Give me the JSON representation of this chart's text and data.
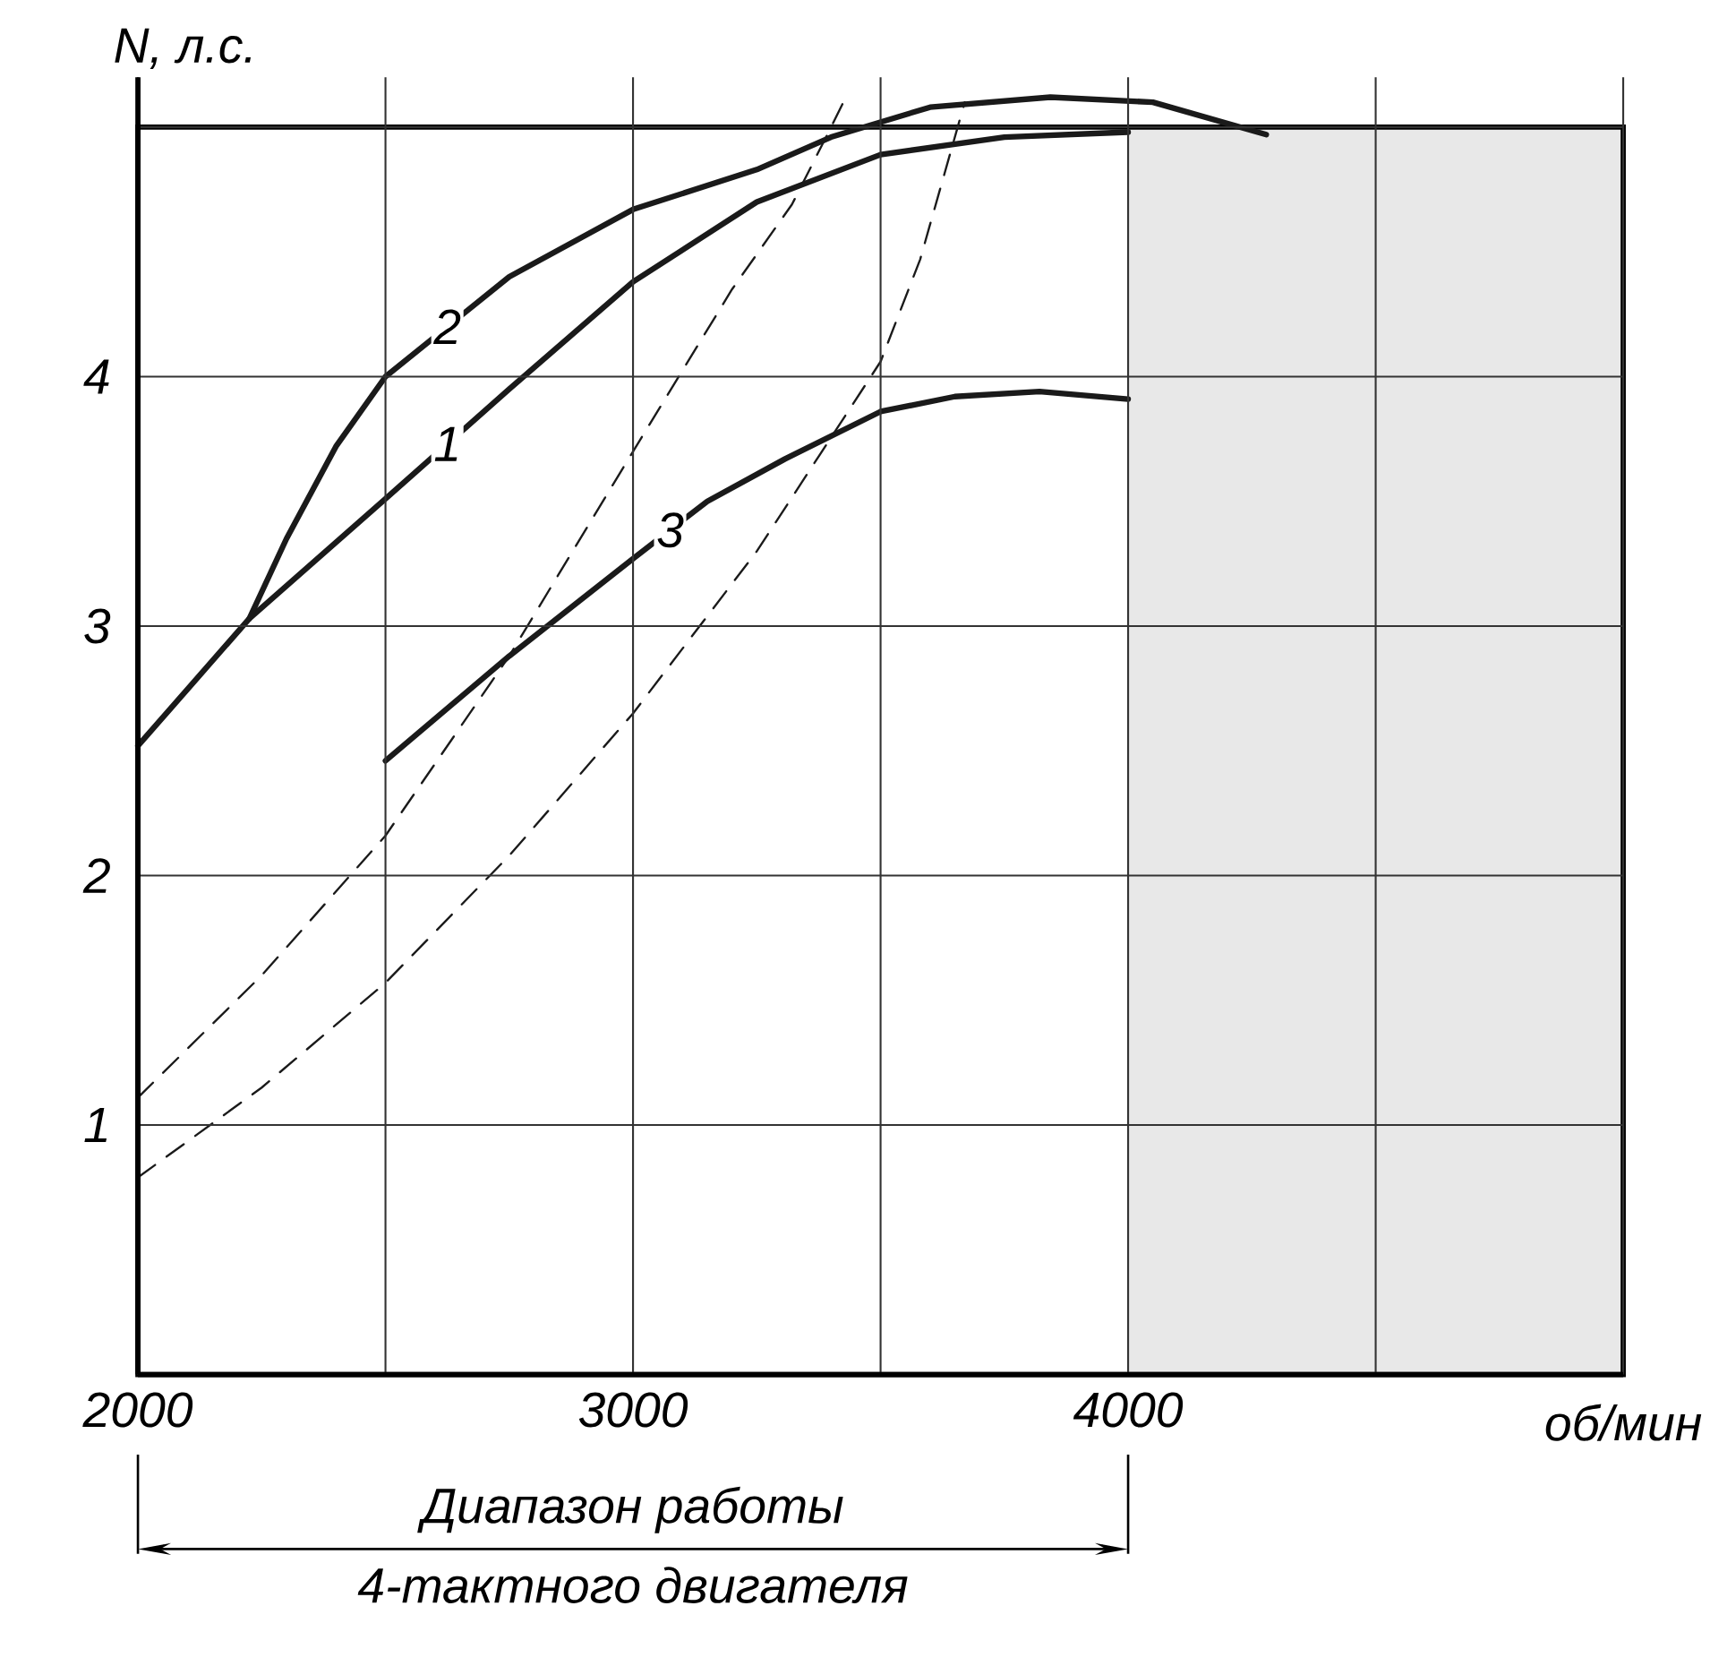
{
  "chart_data": {
    "type": "line",
    "xlabel": "об/мин",
    "ylabel": "N, л.с.",
    "xlim": [
      2000,
      5000
    ],
    "ylim": [
      0,
      5.2
    ],
    "xticks": [
      2000,
      {
        "value": 2500,
        "label": null
      },
      3000,
      {
        "value": 3500,
        "label": null
      },
      4000,
      {
        "value": 4500,
        "label": null
      },
      {
        "value": 5000,
        "label": null
      }
    ],
    "yticks": [
      1,
      2,
      3,
      4,
      {
        "value": 5,
        "label": null
      }
    ],
    "grid": true,
    "legend": false,
    "marker": "none",
    "series": [
      {
        "name": "1",
        "color": "#1a1a1a",
        "line_style": "solid",
        "x": [
          2000,
          2225,
          2500,
          2750,
          3000,
          3250,
          3500,
          3750,
          4000
        ],
        "values": [
          2.52,
          3.03,
          3.51,
          3.95,
          4.38,
          4.7,
          4.89,
          4.96,
          4.98
        ]
      },
      {
        "name": "2",
        "color": "#1a1a1a",
        "line_style": "solid",
        "x": [
          2225,
          2300,
          2400,
          2500,
          2750,
          3000,
          3250,
          3400,
          3600,
          3843,
          4050,
          4279
        ],
        "values": [
          3.03,
          3.35,
          3.72,
          4.0,
          4.4,
          4.67,
          4.83,
          4.96,
          5.08,
          5.12,
          5.1,
          4.97
        ]
      },
      {
        "name": "3",
        "color": "#1a1a1a",
        "line_style": "solid",
        "x": [
          2500,
          2750,
          3000,
          3150,
          3307,
          3500,
          3650,
          3821,
          4000
        ],
        "values": [
          2.46,
          2.88,
          3.27,
          3.5,
          3.67,
          3.86,
          3.92,
          3.94,
          3.91
        ]
      },
      {
        "color": "#1a1a1a",
        "line_style": "dashed",
        "x": [
          2000,
          2250,
          2500,
          2750,
          3000,
          3200,
          3321,
          3400,
          3430
        ],
        "values": [
          1.11,
          1.6,
          2.16,
          2.88,
          3.7,
          4.35,
          4.69,
          5.0,
          5.12
        ]
      },
      {
        "color": "#1a1a1a",
        "line_style": "dashed",
        "x": [
          2000,
          2250,
          2500,
          2750,
          3000,
          3250,
          3500,
          3580,
          3670
        ],
        "values": [
          0.79,
          1.15,
          1.57,
          2.08,
          2.65,
          3.3,
          4.06,
          4.47,
          5.1
        ]
      }
    ],
    "bands": [
      {
        "axis": "x",
        "from": 4000,
        "to": 5000,
        "color": "#e8e8e8"
      }
    ],
    "annotations": [
      "Диапазон работы",
      "4-тактного двигателя"
    ]
  }
}
